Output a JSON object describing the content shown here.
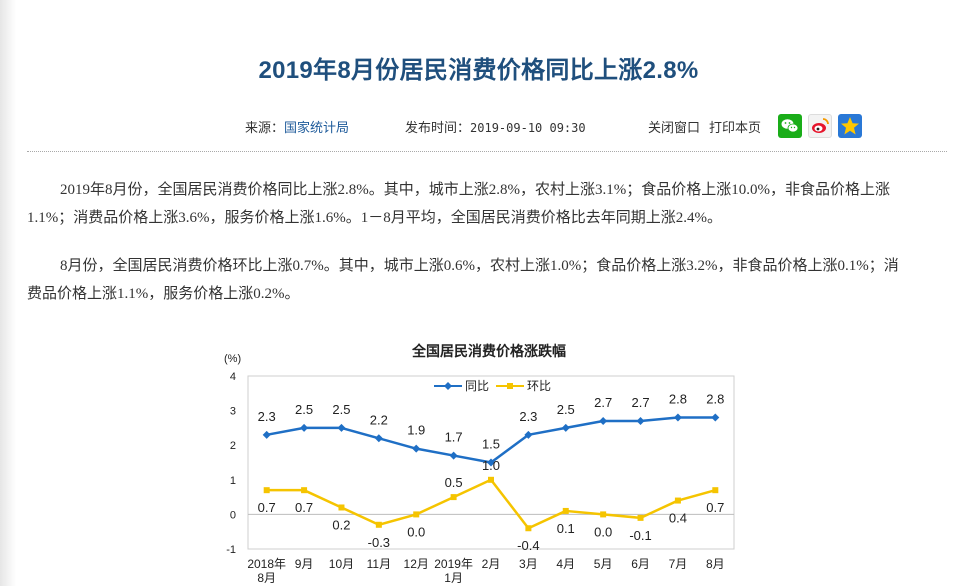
{
  "article": {
    "title": "2019年8月份居民消费价格同比上涨2.8%",
    "source_label": "来源：",
    "source_name": "国家统计局",
    "publish_label": "发布时间：",
    "publish_time": "2019-09-10 09:30",
    "close_window": "关闭窗口",
    "print_page": "打印本页",
    "share_icons": [
      "wechat-icon",
      "weibo-icon",
      "qzone-icon"
    ],
    "paragraphs": [
      "2019年8月份，全国居民消费价格同比上涨2.8%。其中，城市上涨2.8%，农村上涨3.1%；食品价格上涨10.0%，非食品价格上涨1.1%；消费品价格上涨3.6%，服务价格上涨1.6%。1－8月平均，全国居民消费价格比去年同期上涨2.4%。",
      "8月份，全国居民消费价格环比上涨0.7%。其中，城市上涨0.6%，农村上涨1.0%；食品价格上涨3.2%，非食品价格上涨0.1%；消费品价格上涨1.1%，服务价格上涨0.2%。"
    ]
  },
  "chart_data": {
    "type": "line",
    "title": "全国居民消费价格涨跌幅",
    "ylabel": "(%)",
    "ylim": [
      -1,
      4
    ],
    "yticks": [
      -1,
      0,
      1,
      2,
      3,
      4
    ],
    "categories": [
      "2018年8月",
      "9月",
      "10月",
      "11月",
      "12月",
      "2019年1月",
      "2月",
      "3月",
      "4月",
      "5月",
      "6月",
      "7月",
      "8月"
    ],
    "legend_position": "top",
    "series": [
      {
        "name": "同比",
        "color": "#1f6fc5",
        "values": [
          2.3,
          2.5,
          2.5,
          2.2,
          1.9,
          1.7,
          1.5,
          2.3,
          2.5,
          2.7,
          2.7,
          2.8,
          2.8
        ]
      },
      {
        "name": "环比",
        "color": "#f5c400",
        "values": [
          0.7,
          0.7,
          0.2,
          -0.3,
          0.0,
          0.5,
          1.0,
          -0.4,
          0.1,
          0.0,
          -0.1,
          0.4,
          0.7
        ]
      }
    ]
  }
}
